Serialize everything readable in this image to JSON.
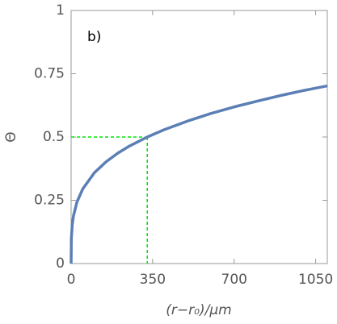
{
  "chart_data": {
    "type": "line",
    "annotation": "b)",
    "x_label": "(r−r₀)/μm",
    "y_label": "Θ",
    "x": [
      0,
      1,
      5,
      10,
      25,
      50,
      100,
      150,
      200,
      250,
      327,
      400,
      500,
      600,
      700,
      800,
      900,
      1000,
      1100
    ],
    "series": [
      {
        "color": "#5b7fb5",
        "values": [
          0,
          0.099,
          0.155,
          0.188,
          0.243,
          0.295,
          0.359,
          0.402,
          0.436,
          0.464,
          0.5,
          0.529,
          0.563,
          0.593,
          0.619,
          0.642,
          0.664,
          0.684,
          0.702
        ]
      }
    ],
    "guide": {
      "x": 327,
      "y": 0.5,
      "color": "#00e600"
    },
    "xlim": [
      0,
      1100
    ],
    "xticks": [
      0,
      350,
      700,
      1050
    ],
    "ylim": [
      0,
      1
    ],
    "yticks": [
      0,
      0.25,
      0.5,
      0.75,
      1
    ],
    "grid": false
  }
}
